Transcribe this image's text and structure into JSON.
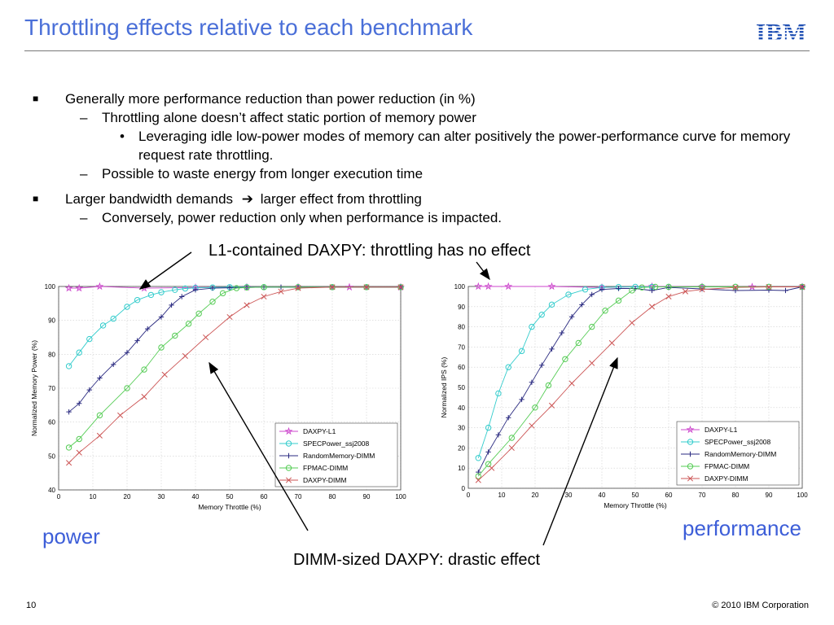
{
  "slide": {
    "title": "Throttling effects relative to each benchmark",
    "logo_text": "IBM",
    "bullets": {
      "b1": "Generally more performance reduction than power reduction (in %)",
      "b1_1": "Throttling alone doesn’t affect static portion of memory power",
      "b1_1_1": "Leveraging idle low-power modes of memory can alter positively the power-performance curve for memory request rate throttling.",
      "b1_2": "Possible to waste energy from longer execution time",
      "b2": "Larger bandwidth demands",
      "b2_tail": "larger effect from throttling",
      "b2_1": "Conversely, power reduction only when performance is impacted."
    },
    "callout_top": "L1-contained DAXPY:  throttling has no effect",
    "callout_bottom": "DIMM-sized DAXPY: drastic effect",
    "label_left": "power",
    "label_right": "performance",
    "page_number": "10",
    "copyright": "© 2010 IBM Corporation"
  },
  "chart_data": [
    {
      "type": "line",
      "xlabel": "Memory Throttle (%)",
      "ylabel": "Normalized Memory Power (%)",
      "xlim": [
        0,
        100
      ],
      "ylim": [
        40,
        100
      ],
      "xticks": [
        0,
        10,
        20,
        30,
        40,
        50,
        60,
        70,
        80,
        90,
        100
      ],
      "yticks": [
        40,
        50,
        60,
        70,
        80,
        90,
        100
      ],
      "grid": true,
      "legend_position": "bottom-right",
      "series": [
        {
          "name": "DAXPY-L1",
          "color": "#cc44cc",
          "marker": "star",
          "x": [
            3,
            6,
            12,
            25,
            40,
            55,
            70,
            85,
            100
          ],
          "y": [
            99.5,
            99.5,
            100,
            99.5,
            99.7,
            99.8,
            99.8,
            99.8,
            99.8
          ]
        },
        {
          "name": "SPECPower_ssj2008",
          "color": "#33cccc",
          "marker": "circle",
          "x": [
            3,
            6,
            9,
            13,
            16,
            20,
            23,
            27,
            30,
            34,
            37,
            40,
            45,
            50,
            55,
            60,
            70,
            80,
            90,
            100
          ],
          "y": [
            76.5,
            80.5,
            84.5,
            88.5,
            90.5,
            94,
            96,
            97.5,
            98.3,
            99,
            99.4,
            99.6,
            99.7,
            99.8,
            99.8,
            99.8,
            99.8,
            99.8,
            99.8,
            99.8
          ]
        },
        {
          "name": "RandomMemory-DIMM",
          "color": "#2a2a80",
          "marker": "plus",
          "x": [
            3,
            6,
            9,
            12,
            16,
            20,
            23,
            26,
            30,
            33,
            36,
            40,
            45,
            50,
            55,
            60,
            65,
            70,
            80,
            90,
            100
          ],
          "y": [
            63,
            65.5,
            69.5,
            73,
            77,
            80.5,
            84,
            87.5,
            91,
            94.5,
            97,
            99,
            99.5,
            99.6,
            99.7,
            99.8,
            99.8,
            99.8,
            99.8,
            99.8,
            99.8
          ]
        },
        {
          "name": "FPMAC-DIMM",
          "color": "#55cc55",
          "marker": "circle",
          "x": [
            3,
            6,
            12,
            20,
            25,
            30,
            34,
            38,
            41,
            45,
            48,
            52,
            55,
            60,
            70,
            80,
            90,
            100
          ],
          "y": [
            52.5,
            55,
            62,
            70,
            75.5,
            82,
            85.5,
            89,
            92,
            95.5,
            98,
            99.5,
            99.7,
            99.8,
            99.8,
            99.8,
            99.8,
            99.8
          ]
        },
        {
          "name": "DAXPY-DIMM",
          "color": "#cc5555",
          "marker": "x",
          "x": [
            3,
            6,
            12,
            18,
            25,
            31,
            37,
            43,
            50,
            55,
            60,
            65,
            70,
            80,
            90,
            100
          ],
          "y": [
            48,
            51,
            56,
            62,
            67.5,
            74,
            79.5,
            85,
            91,
            94.5,
            97,
            98.5,
            99.5,
            99.8,
            99.8,
            99.8
          ]
        }
      ]
    },
    {
      "type": "line",
      "xlabel": "Memory Throttle (%)",
      "ylabel": "Normalized IPS (%)",
      "xlim": [
        0,
        100
      ],
      "ylim": [
        0,
        100
      ],
      "xticks": [
        0,
        10,
        20,
        30,
        40,
        50,
        60,
        70,
        80,
        90,
        100
      ],
      "yticks": [
        0,
        10,
        20,
        30,
        40,
        50,
        60,
        70,
        80,
        90,
        100
      ],
      "grid": true,
      "legend_position": "bottom-right",
      "series": [
        {
          "name": "DAXPY-L1",
          "color": "#cc44cc",
          "marker": "star",
          "x": [
            3,
            6,
            12,
            25,
            40,
            55,
            70,
            85,
            100
          ],
          "y": [
            100,
            100,
            100,
            100,
            99.5,
            100,
            99.8,
            99.8,
            99.8
          ]
        },
        {
          "name": "SPECPower_ssj2008",
          "color": "#33cccc",
          "marker": "circle",
          "x": [
            3,
            6,
            9,
            12,
            16,
            19,
            22,
            25,
            30,
            35,
            40,
            45,
            50,
            55,
            60,
            70,
            80,
            90,
            100
          ],
          "y": [
            15,
            30,
            47,
            60,
            68,
            80,
            86,
            91,
            96,
            98.5,
            99.5,
            99.7,
            99.8,
            99.8,
            99.8,
            99.8,
            99.8,
            99.8,
            99.8
          ]
        },
        {
          "name": "RandomMemory-DIMM",
          "color": "#2a2a80",
          "marker": "plus",
          "x": [
            3,
            6,
            9,
            12,
            16,
            19,
            22,
            25,
            28,
            31,
            34,
            37,
            40,
            45,
            50,
            55,
            60,
            70,
            80,
            90,
            95,
            100
          ],
          "y": [
            8,
            18,
            26.5,
            35,
            44,
            52.5,
            61,
            69,
            77,
            85,
            91,
            96,
            98.5,
            99,
            99,
            98,
            99.5,
            98.8,
            98,
            98.2,
            98,
            99.8
          ]
        },
        {
          "name": "FPMAC-DIMM",
          "color": "#55cc55",
          "marker": "circle",
          "x": [
            3,
            6,
            13,
            20,
            24,
            29,
            33,
            37,
            41,
            45,
            49,
            52,
            56,
            60,
            70,
            80,
            90,
            100
          ],
          "y": [
            6,
            12,
            25,
            40,
            51,
            64,
            72,
            80,
            88,
            93,
            98,
            99.5,
            99.8,
            99.8,
            99.8,
            99.8,
            99.8,
            99.8
          ]
        },
        {
          "name": "DAXPY-DIMM",
          "color": "#cc5555",
          "marker": "x",
          "x": [
            3,
            7,
            13,
            19,
            25,
            31,
            37,
            43,
            49,
            55,
            60,
            65,
            70,
            80,
            90,
            100
          ],
          "y": [
            4,
            10,
            20,
            31,
            41,
            52,
            62,
            72,
            82,
            90,
            95,
            97.5,
            98.5,
            99.5,
            99.8,
            99.8
          ]
        }
      ]
    }
  ]
}
